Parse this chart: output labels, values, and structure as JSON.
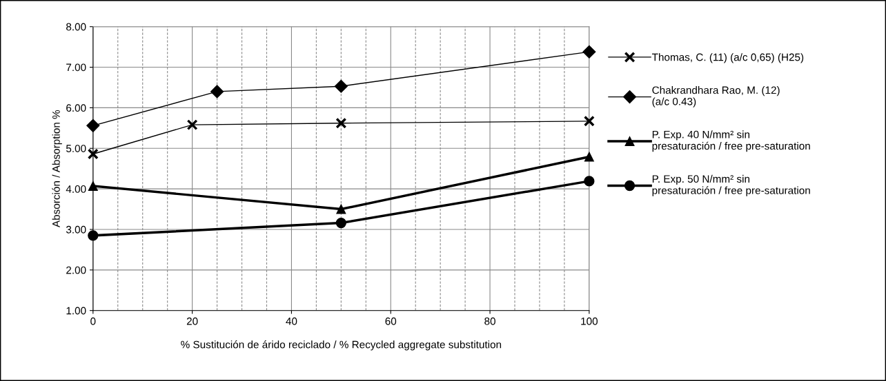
{
  "chart_data": {
    "type": "line",
    "xlabel": "% Sustitución de árido reciclado / % Recycled aggregate substitution",
    "ylabel": "Absorción / Absorption %",
    "series": [
      {
        "name": "Thomas, C. (11) (a/c 0,65) (H25)",
        "color": "#000000",
        "marker": "cross",
        "x": [
          0,
          20,
          50,
          100
        ],
        "values": [
          4.86,
          5.58,
          5.62,
          5.67
        ]
      },
      {
        "name": "Chakrandhara Rao, M. (12)\n(a/c 0.43)",
        "color": "#000000",
        "marker": "diamond",
        "x": [
          0,
          25,
          50,
          100
        ],
        "values": [
          5.56,
          6.4,
          6.53,
          7.38
        ]
      },
      {
        "name": "P. Exp. 40 N/mm² sin\npresaturación / free pre-saturation",
        "color": "#000000",
        "marker": "triangle",
        "x": [
          0,
          50,
          100
        ],
        "values": [
          4.07,
          3.5,
          4.79
        ]
      },
      {
        "name": "P. Exp. 50 N/mm² sin\npresaturación / free pre-saturation",
        "color": "#000000",
        "marker": "circle",
        "x": [
          0,
          50,
          100
        ],
        "values": [
          2.85,
          3.16,
          4.19
        ]
      }
    ],
    "xlim": [
      0,
      100
    ],
    "xticks": [
      0,
      20,
      40,
      60,
      80,
      100
    ],
    "ylim": [
      1,
      8
    ],
    "yticks": [
      {
        "value": 1,
        "label": "1.00"
      },
      {
        "value": 2,
        "label": "2.00"
      },
      {
        "value": 3,
        "label": "3.00"
      },
      {
        "value": 4,
        "label": "4.00"
      },
      {
        "value": 5,
        "label": "5.00"
      },
      {
        "value": 6,
        "label": "6.00"
      },
      {
        "value": 7,
        "label": "7.00"
      },
      {
        "value": 8,
        "label": "8.00"
      }
    ],
    "grid": true,
    "legend": "right",
    "line_style": "solid"
  }
}
